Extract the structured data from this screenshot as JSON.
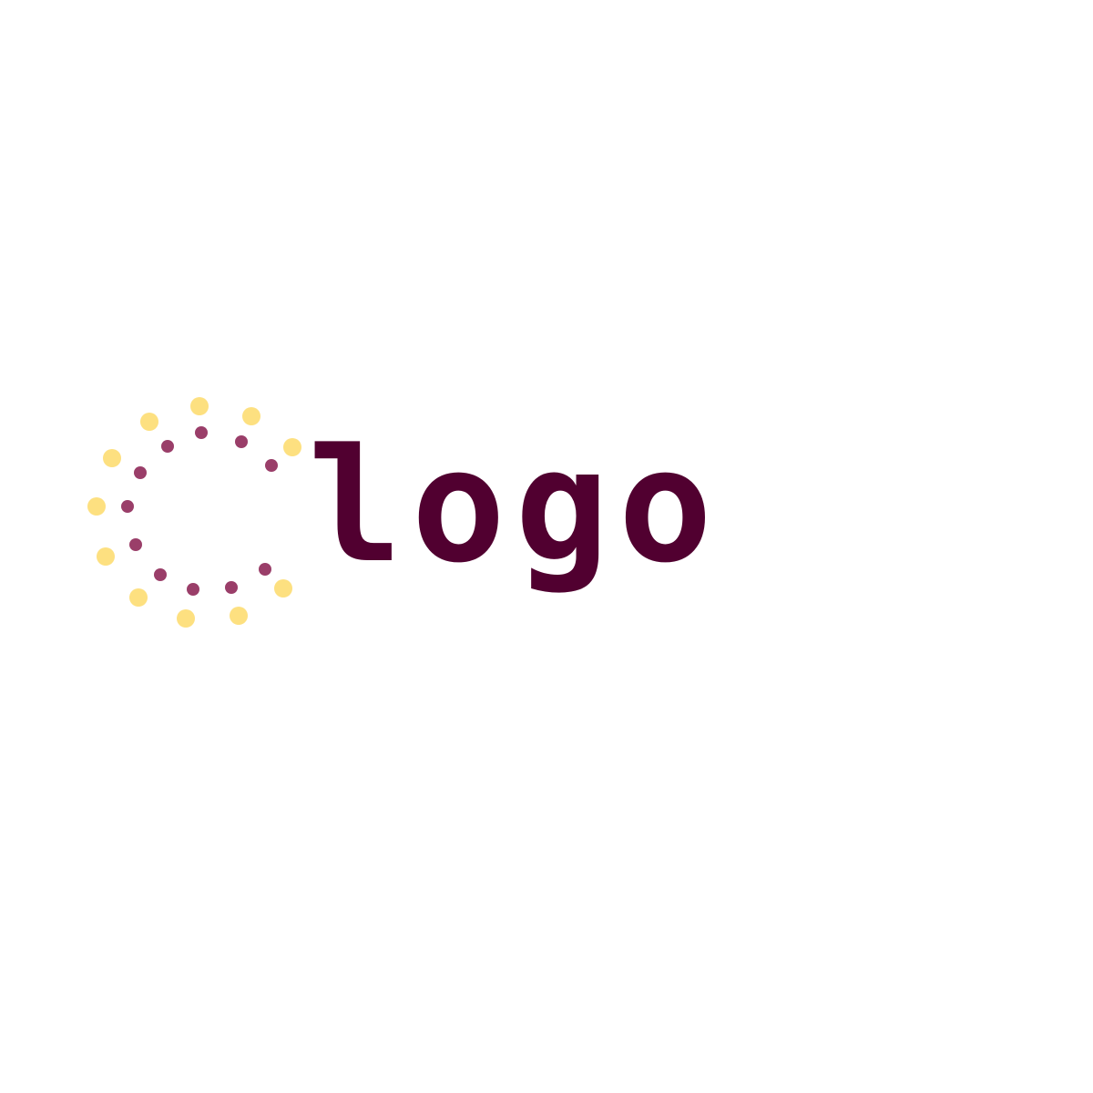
{
  "logo": {
    "wordmark": "logo",
    "wordmark_color": "#510030",
    "outer_dot_color": "#fde080",
    "inner_dot_color": "#9a3e69",
    "mark_icon": "dotted-circle-icon"
  }
}
